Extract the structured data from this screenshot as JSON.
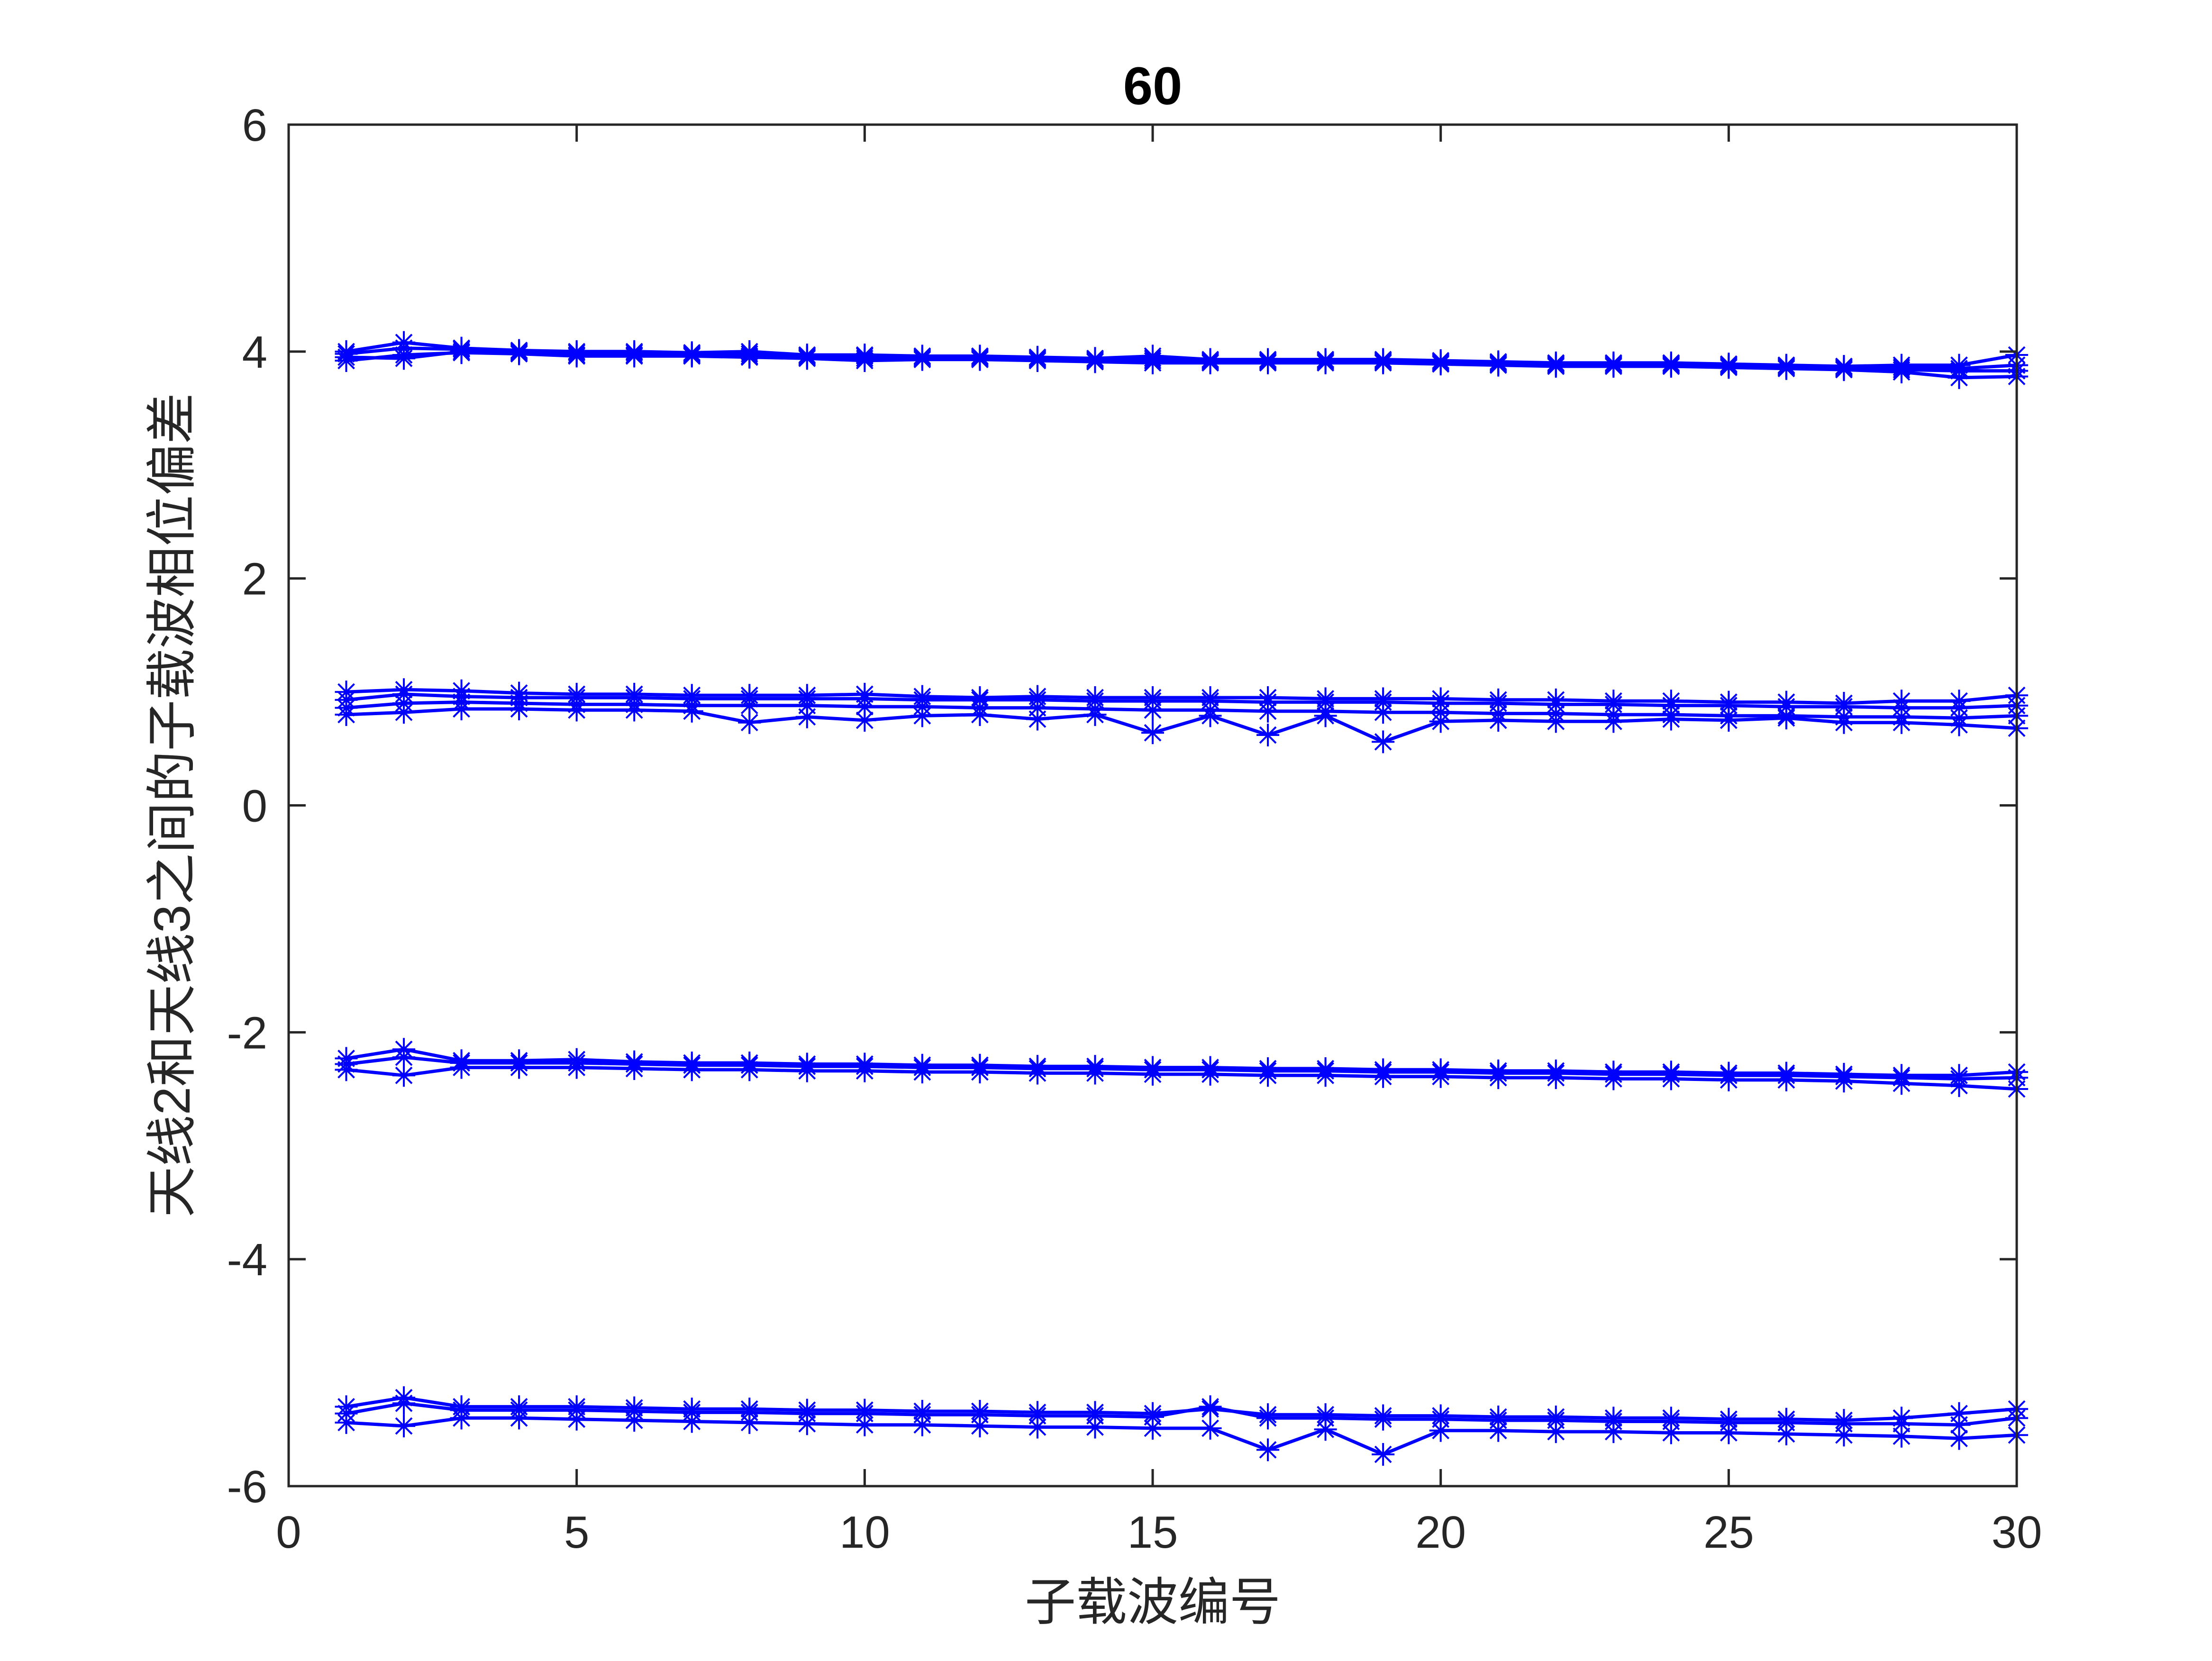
{
  "figure": {
    "background": "#ffffff"
  },
  "chart_data": {
    "type": "line",
    "title": "60",
    "xlabel": "子载波编号",
    "ylabel": "天线2和天线3之间的子载波相位偏差",
    "xlim": [
      0,
      30
    ],
    "ylim": [
      -6,
      6
    ],
    "xticks": [
      0,
      5,
      10,
      15,
      20,
      25,
      30
    ],
    "yticks": [
      -6,
      -4,
      -2,
      0,
      2,
      4,
      6
    ],
    "xtick_labels": [
      "0",
      "5",
      "10",
      "15",
      "20",
      "25",
      "30"
    ],
    "ytick_labels": [
      "-6",
      "-4",
      "-2",
      "0",
      "2",
      "4",
      "6"
    ],
    "grid": false,
    "legend": "none",
    "marker": "asterisk",
    "line_color": "#0000ff",
    "x": [
      1,
      2,
      3,
      4,
      5,
      6,
      7,
      8,
      9,
      10,
      11,
      12,
      13,
      14,
      15,
      16,
      17,
      18,
      19,
      20,
      21,
      22,
      23,
      24,
      25,
      26,
      27,
      28,
      29,
      30
    ],
    "series": [
      {
        "values": [
          3.95,
          3.94,
          4.0,
          3.99,
          3.97,
          3.97,
          3.97,
          3.96,
          3.95,
          3.94,
          3.94,
          3.94,
          3.93,
          3.92,
          3.92,
          3.91,
          3.91,
          3.91,
          3.91,
          3.9,
          3.89,
          3.88,
          3.88,
          3.88,
          3.87,
          3.86,
          3.85,
          3.84,
          3.83,
          3.83
        ]
      },
      {
        "values": [
          3.98,
          4.03,
          4.02,
          4.0,
          3.99,
          3.99,
          3.98,
          3.98,
          3.96,
          3.96,
          3.95,
          3.95,
          3.94,
          3.93,
          3.94,
          3.92,
          3.92,
          3.92,
          3.92,
          3.91,
          3.9,
          3.89,
          3.89,
          3.89,
          3.88,
          3.87,
          3.86,
          3.86,
          3.85,
          3.88
        ]
      },
      {
        "values": [
          3.92,
          3.97,
          3.99,
          3.98,
          3.96,
          3.96,
          3.96,
          3.95,
          3.94,
          3.92,
          3.93,
          3.93,
          3.92,
          3.91,
          3.9,
          3.9,
          3.9,
          3.9,
          3.9,
          3.89,
          3.88,
          3.87,
          3.87,
          3.87,
          3.86,
          3.85,
          3.84,
          3.82,
          3.77,
          3.78
        ]
      },
      {
        "values": [
          4.0,
          4.08,
          4.03,
          4.01,
          4.0,
          4.0,
          3.99,
          4.0,
          3.97,
          3.97,
          3.96,
          3.96,
          3.95,
          3.94,
          3.96,
          3.93,
          3.93,
          3.93,
          3.93,
          3.92,
          3.91,
          3.9,
          3.9,
          3.9,
          3.89,
          3.88,
          3.87,
          3.88,
          3.88,
          3.97
        ]
      },
      {
        "values": [
          0.93,
          0.98,
          0.96,
          0.95,
          0.95,
          0.95,
          0.94,
          0.94,
          0.94,
          0.94,
          0.93,
          0.93,
          0.93,
          0.92,
          0.92,
          0.92,
          0.91,
          0.91,
          0.91,
          0.9,
          0.9,
          0.89,
          0.89,
          0.88,
          0.88,
          0.87,
          0.87,
          0.86,
          0.86,
          0.88
        ]
      },
      {
        "values": [
          0.86,
          0.9,
          0.91,
          0.9,
          0.89,
          0.89,
          0.88,
          0.88,
          0.88,
          0.87,
          0.87,
          0.86,
          0.86,
          0.85,
          0.84,
          0.84,
          0.83,
          0.83,
          0.82,
          0.82,
          0.81,
          0.81,
          0.8,
          0.8,
          0.79,
          0.79,
          0.78,
          0.78,
          0.77,
          0.79
        ]
      },
      {
        "values": [
          0.8,
          0.82,
          0.85,
          0.85,
          0.84,
          0.84,
          0.83,
          0.73,
          0.78,
          0.75,
          0.79,
          0.8,
          0.76,
          0.8,
          0.64,
          0.79,
          0.62,
          0.79,
          0.56,
          0.74,
          0.75,
          0.74,
          0.74,
          0.76,
          0.75,
          0.77,
          0.73,
          0.73,
          0.71,
          0.68
        ]
      },
      {
        "values": [
          1.0,
          1.02,
          1.01,
          0.99,
          0.98,
          0.98,
          0.97,
          0.97,
          0.97,
          0.98,
          0.96,
          0.95,
          0.96,
          0.95,
          0.95,
          0.95,
          0.95,
          0.94,
          0.94,
          0.94,
          0.93,
          0.93,
          0.92,
          0.92,
          0.91,
          0.91,
          0.9,
          0.92,
          0.92,
          0.97
        ]
      },
      {
        "values": [
          -2.28,
          -2.22,
          -2.27,
          -2.27,
          -2.27,
          -2.28,
          -2.29,
          -2.29,
          -2.3,
          -2.3,
          -2.31,
          -2.31,
          -2.32,
          -2.32,
          -2.33,
          -2.33,
          -2.34,
          -2.34,
          -2.35,
          -2.35,
          -2.36,
          -2.36,
          -2.37,
          -2.37,
          -2.38,
          -2.38,
          -2.39,
          -2.4,
          -2.41,
          -2.4
        ]
      },
      {
        "values": [
          -2.33,
          -2.38,
          -2.31,
          -2.31,
          -2.31,
          -2.32,
          -2.33,
          -2.33,
          -2.34,
          -2.34,
          -2.35,
          -2.35,
          -2.36,
          -2.36,
          -2.37,
          -2.37,
          -2.38,
          -2.38,
          -2.39,
          -2.39,
          -2.4,
          -2.4,
          -2.41,
          -2.41,
          -2.42,
          -2.42,
          -2.43,
          -2.45,
          -2.47,
          -2.5
        ]
      },
      {
        "values": [
          -2.23,
          -2.15,
          -2.25,
          -2.25,
          -2.24,
          -2.26,
          -2.27,
          -2.27,
          -2.28,
          -2.28,
          -2.29,
          -2.29,
          -2.3,
          -2.3,
          -2.31,
          -2.31,
          -2.32,
          -2.32,
          -2.33,
          -2.33,
          -2.34,
          -2.34,
          -2.35,
          -2.35,
          -2.36,
          -2.36,
          -2.37,
          -2.38,
          -2.38,
          -2.35
        ]
      },
      {
        "values": [
          -5.36,
          -5.27,
          -5.33,
          -5.33,
          -5.33,
          -5.34,
          -5.35,
          -5.35,
          -5.36,
          -5.36,
          -5.37,
          -5.37,
          -5.38,
          -5.38,
          -5.39,
          -5.3,
          -5.4,
          -5.4,
          -5.41,
          -5.41,
          -5.42,
          -5.42,
          -5.43,
          -5.43,
          -5.44,
          -5.44,
          -5.45,
          -5.45,
          -5.46,
          -5.4
        ]
      },
      {
        "values": [
          -5.44,
          -5.47,
          -5.4,
          -5.4,
          -5.41,
          -5.42,
          -5.43,
          -5.44,
          -5.45,
          -5.46,
          -5.46,
          -5.47,
          -5.48,
          -5.48,
          -5.49,
          -5.49,
          -5.68,
          -5.5,
          -5.72,
          -5.51,
          -5.51,
          -5.52,
          -5.52,
          -5.53,
          -5.53,
          -5.54,
          -5.55,
          -5.56,
          -5.58,
          -5.55
        ]
      },
      {
        "values": [
          -5.3,
          -5.22,
          -5.3,
          -5.3,
          -5.3,
          -5.31,
          -5.32,
          -5.32,
          -5.33,
          -5.33,
          -5.34,
          -5.34,
          -5.35,
          -5.35,
          -5.36,
          -5.32,
          -5.37,
          -5.37,
          -5.38,
          -5.38,
          -5.39,
          -5.39,
          -5.4,
          -5.4,
          -5.41,
          -5.41,
          -5.42,
          -5.4,
          -5.36,
          -5.32
        ]
      }
    ]
  }
}
